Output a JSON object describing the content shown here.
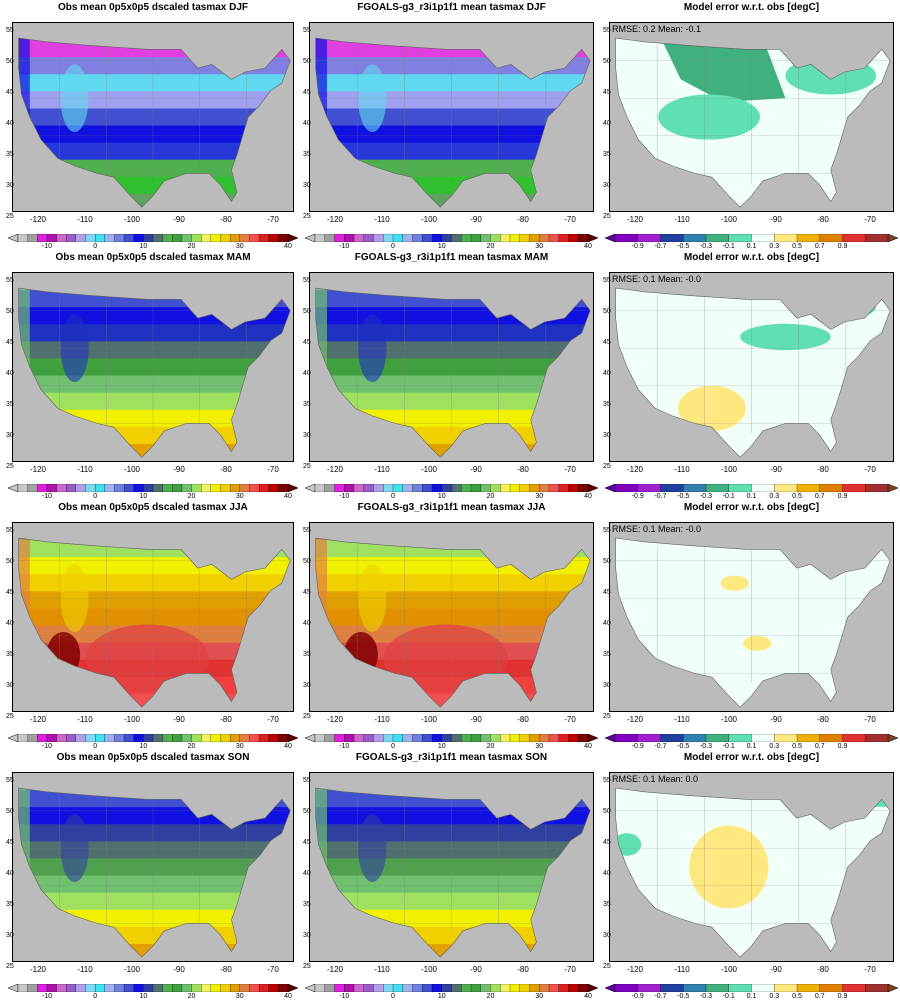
{
  "titles": [
    [
      "Obs mean 0p5x0p5 dscaled tasmax DJF",
      "FGOALS-g3_r3i1p1f1 mean tasmax DJF",
      "Model error w.r.t. obs [degC]"
    ],
    [
      "Obs mean 0p5x0p5 dscaled tasmax MAM",
      "FGOALS-g3_r3i1p1f1 mean tasmax MAM",
      "Model error w.r.t. obs [degC]"
    ],
    [
      "Obs mean 0p5x0p5 dscaled tasmax JJA",
      "FGOALS-g3_r3i1p1f1 mean tasmax JJA",
      "Model error w.r.t. obs [degC]"
    ],
    [
      "Obs mean 0p5x0p5 dscaled tasmax SON",
      "FGOALS-g3_r3i1p1f1 mean tasmax SON",
      "Model error w.r.t. obs [degC]"
    ]
  ],
  "stats": [
    "RMSE: 0.2   Mean: -0.1",
    "RMSE: 0.1   Mean: -0.0",
    "RMSE: 0.1   Mean: -0.0",
    "RMSE: 0.1   Mean: 0.0"
  ],
  "lat_ticks": [
    "55",
    "50",
    "45",
    "40",
    "35",
    "30",
    "25"
  ],
  "lon_ticks": [
    "-120",
    "-110",
    "-100",
    "-90",
    "-80",
    "-70"
  ],
  "temp_colorbar": {
    "labels": [
      "-10",
      "0",
      "10",
      "20",
      "30",
      "40"
    ],
    "colors": [
      "#c8c8c8",
      "#a0a0a0",
      "#e020e0",
      "#b010b0",
      "#cc66cc",
      "#9a5cc8",
      "#b0a0e8",
      "#80d8f0",
      "#40e0f0",
      "#a0b0f0",
      "#7080e0",
      "#4050d0",
      "#1010e0",
      "#3040a0",
      "#507070",
      "#50b050",
      "#40a040",
      "#70c070",
      "#a0e060",
      "#f0f060",
      "#f0f000",
      "#f0d000",
      "#e0a000",
      "#e08040",
      "#f05050",
      "#e02020",
      "#c00000",
      "#800000"
    ],
    "min_color": "#c8c8c8",
    "max_color": "#600000"
  },
  "error_colorbar": {
    "labels": [
      "-0.9",
      "-0.7",
      "-0.5",
      "-0.3",
      "-0.1",
      "0.1",
      "0.3",
      "0.5",
      "0.7",
      "0.9"
    ],
    "colors": [
      "#8000c0",
      "#a020d0",
      "#2040a0",
      "#3080b0",
      "#40b080",
      "#60e0b0",
      "#f0fff8",
      "#ffe880",
      "#f0b000",
      "#e08000",
      "#e03030",
      "#a03030"
    ],
    "min_color": "#6000a0",
    "max_color": "#804020"
  },
  "seasons": [
    "DJF",
    "MAM",
    "JJA",
    "SON"
  ],
  "colors": {
    "land_mask": "#bbbbbb",
    "ocean": "#bbbbbb",
    "boundary": "#808080"
  }
}
